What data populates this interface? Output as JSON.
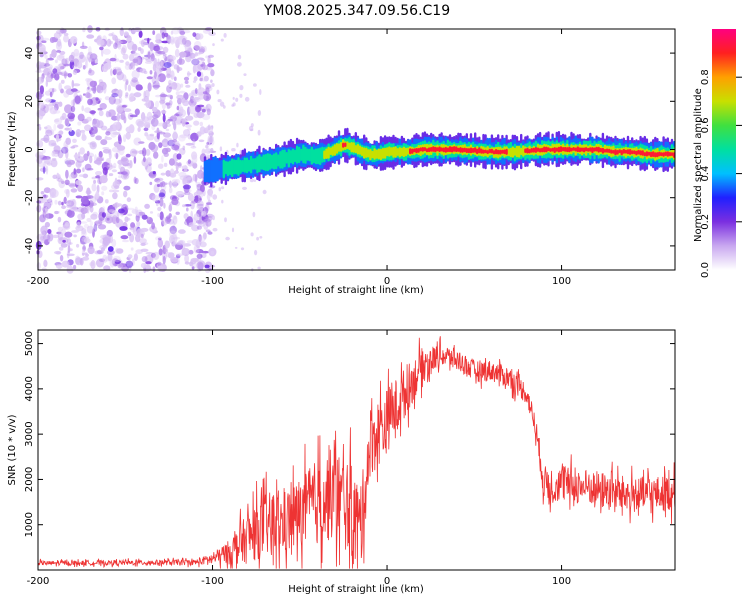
{
  "title": "YM08.2025.347.09.56.C19",
  "chart_data": [
    {
      "type": "heatmap",
      "name": "spectrogram",
      "xlabel": "Height of straight line (km)",
      "ylabel": "Frequency (Hz)",
      "xlim": [
        -200,
        165
      ],
      "ylim": [
        -50,
        50
      ],
      "xticks": [
        -200,
        -100,
        0,
        100
      ],
      "yticks": [
        -40,
        -20,
        0,
        20,
        40
      ],
      "colorbar": {
        "label": "Normalized spectral amplitude",
        "range": [
          0,
          1
        ],
        "ticks": [
          0.2,
          0.4,
          0.6,
          0.8
        ],
        "tick_labels": [
          "0.2",
          "0.4",
          "0.6",
          "0.8"
        ],
        "bottom_label": "0.0",
        "colormap": [
          "#ffffff",
          "#c9a8f0",
          "#7b2fe0",
          "#2020ff",
          "#00c0ff",
          "#00e0a0",
          "#40e040",
          "#c8e000",
          "#ffa000",
          "#ff2020",
          "#ff0080"
        ]
      },
      "noise_region_x": [
        -200,
        -100
      ],
      "ridge_x": [
        -105,
        -95,
        -85,
        -75,
        -60,
        -50,
        -40,
        -30,
        -25,
        -20,
        -15,
        -10,
        -5,
        0,
        10,
        20,
        40,
        60,
        75,
        90,
        100,
        110,
        120,
        130,
        140,
        150,
        165
      ],
      "ridge_hz": [
        -9,
        -8,
        -7,
        -6,
        -4,
        -2,
        -3,
        0,
        2,
        1,
        -1,
        -2,
        -2,
        -1,
        -1,
        0,
        0,
        -1,
        -1,
        0,
        0,
        0,
        0,
        -1,
        -1,
        -2,
        -2
      ],
      "ridge_amp": [
        0.3,
        0.45,
        0.5,
        0.45,
        0.5,
        0.55,
        0.6,
        0.75,
        0.9,
        0.8,
        0.85,
        0.8,
        0.75,
        0.85,
        0.85,
        0.95,
        0.95,
        0.9,
        0.85,
        0.95,
        0.9,
        0.9,
        0.95,
        0.9,
        0.9,
        0.95,
        0.9
      ]
    },
    {
      "type": "line",
      "name": "snr",
      "xlabel": "Height of straight line (km)",
      "ylabel": "SNR (10 * v/v)",
      "xlim": [
        -200,
        165
      ],
      "ylim": [
        0,
        5300
      ],
      "xticks": [
        -200,
        -100,
        0,
        100
      ],
      "yticks": [
        1000,
        2000,
        3000,
        4000,
        5000
      ],
      "color": "#ee3333",
      "envelope_x": [
        -200,
        -110,
        -100,
        -90,
        -80,
        -70,
        -60,
        -50,
        -40,
        -30,
        -20,
        -15,
        -10,
        0,
        10,
        20,
        30,
        40,
        50,
        60,
        70,
        80,
        85,
        90,
        100,
        120,
        140,
        165
      ],
      "envelope_mean": [
        150,
        170,
        250,
        400,
        700,
        1000,
        1000,
        1250,
        1500,
        1700,
        1300,
        900,
        2800,
        3300,
        3900,
        4500,
        4750,
        4650,
        4400,
        4400,
        4250,
        3900,
        3200,
        1900,
        1900,
        1800,
        1650,
        1700
      ],
      "envelope_noise": [
        60,
        80,
        150,
        350,
        700,
        900,
        900,
        1000,
        1200,
        1300,
        1300,
        1100,
        1000,
        900,
        700,
        500,
        300,
        300,
        300,
        300,
        300,
        300,
        300,
        500,
        500,
        500,
        500,
        500
      ]
    }
  ]
}
